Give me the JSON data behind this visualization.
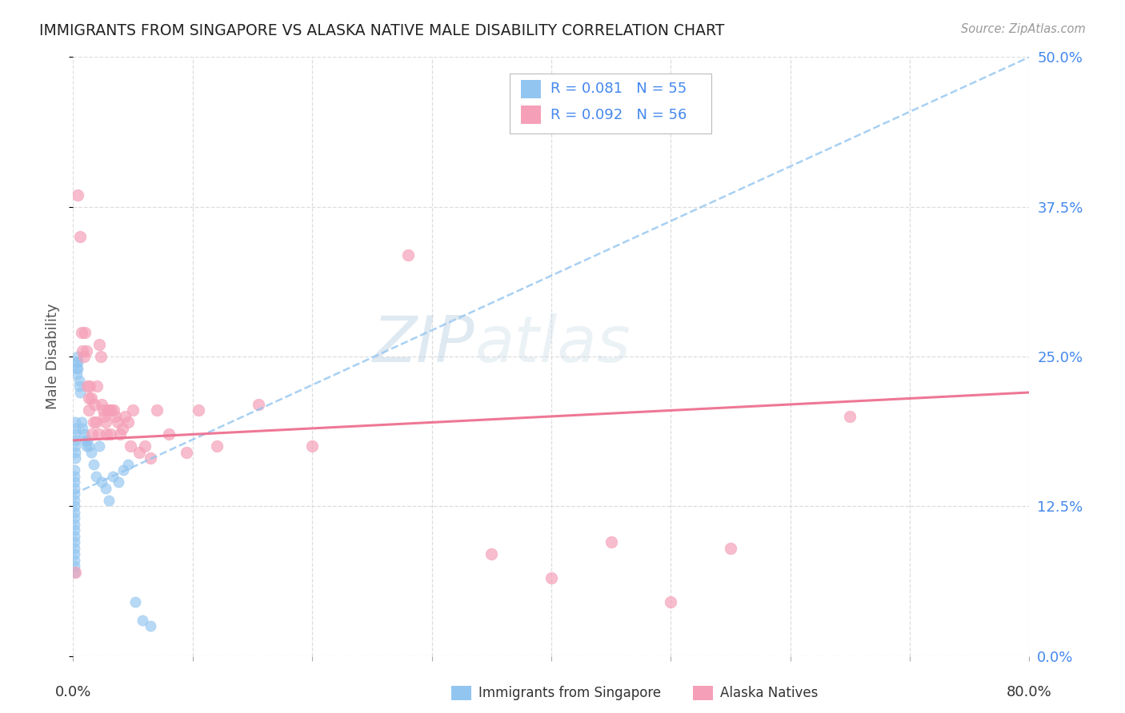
{
  "title": "IMMIGRANTS FROM SINGAPORE VS ALASKA NATIVE MALE DISABILITY CORRELATION CHART",
  "source": "Source: ZipAtlas.com",
  "ylabel": "Male Disability",
  "xlim": [
    0.0,
    0.8
  ],
  "ylim": [
    0.0,
    0.5
  ],
  "xticks": [
    0.0,
    0.1,
    0.2,
    0.3,
    0.4,
    0.5,
    0.6,
    0.7,
    0.8
  ],
  "yticks": [
    0.0,
    0.125,
    0.25,
    0.375,
    0.5
  ],
  "ytick_labels": [
    "0.0%",
    "12.5%",
    "25.0%",
    "37.5%",
    "50.0%"
  ],
  "color_blue": "#92C5F0",
  "color_pink": "#F5A0B8",
  "color_blue_line": "#92C5F0",
  "color_pink_line": "#EE7090",
  "watermark_zip": "ZIP",
  "watermark_atlas": "atlas",
  "blue_scatter_x": [
    0.001,
    0.001,
    0.001,
    0.001,
    0.001,
    0.001,
    0.001,
    0.001,
    0.001,
    0.001,
    0.001,
    0.001,
    0.001,
    0.001,
    0.001,
    0.001,
    0.001,
    0.001,
    0.002,
    0.002,
    0.002,
    0.002,
    0.002,
    0.002,
    0.002,
    0.003,
    0.003,
    0.003,
    0.004,
    0.004,
    0.004,
    0.005,
    0.005,
    0.006,
    0.007,
    0.008,
    0.009,
    0.01,
    0.011,
    0.012,
    0.013,
    0.015,
    0.017,
    0.019,
    0.022,
    0.024,
    0.027,
    0.03,
    0.033,
    0.038,
    0.042,
    0.046,
    0.052,
    0.058,
    0.065
  ],
  "blue_scatter_y": [
    0.155,
    0.15,
    0.145,
    0.14,
    0.135,
    0.13,
    0.125,
    0.12,
    0.115,
    0.11,
    0.105,
    0.1,
    0.095,
    0.09,
    0.085,
    0.08,
    0.075,
    0.07,
    0.195,
    0.19,
    0.185,
    0.18,
    0.175,
    0.17,
    0.165,
    0.245,
    0.24,
    0.235,
    0.25,
    0.245,
    0.24,
    0.23,
    0.225,
    0.22,
    0.195,
    0.19,
    0.185,
    0.18,
    0.175,
    0.18,
    0.175,
    0.17,
    0.16,
    0.15,
    0.175,
    0.145,
    0.14,
    0.13,
    0.15,
    0.145,
    0.155,
    0.16,
    0.045,
    0.03,
    0.025
  ],
  "pink_scatter_x": [
    0.002,
    0.004,
    0.006,
    0.007,
    0.008,
    0.009,
    0.01,
    0.011,
    0.012,
    0.013,
    0.013,
    0.014,
    0.015,
    0.016,
    0.017,
    0.018,
    0.019,
    0.02,
    0.021,
    0.022,
    0.023,
    0.024,
    0.025,
    0.026,
    0.027,
    0.028,
    0.029,
    0.03,
    0.031,
    0.032,
    0.034,
    0.035,
    0.037,
    0.039,
    0.041,
    0.043,
    0.046,
    0.048,
    0.05,
    0.055,
    0.06,
    0.065,
    0.07,
    0.08,
    0.095,
    0.105,
    0.12,
    0.155,
    0.2,
    0.28,
    0.35,
    0.4,
    0.45,
    0.5,
    0.55,
    0.65
  ],
  "pink_scatter_y": [
    0.07,
    0.385,
    0.35,
    0.27,
    0.255,
    0.25,
    0.27,
    0.255,
    0.225,
    0.215,
    0.205,
    0.225,
    0.215,
    0.185,
    0.195,
    0.21,
    0.195,
    0.225,
    0.185,
    0.26,
    0.25,
    0.21,
    0.205,
    0.2,
    0.195,
    0.185,
    0.205,
    0.205,
    0.185,
    0.205,
    0.205,
    0.2,
    0.195,
    0.185,
    0.19,
    0.2,
    0.195,
    0.175,
    0.205,
    0.17,
    0.175,
    0.165,
    0.205,
    0.185,
    0.17,
    0.205,
    0.175,
    0.21,
    0.175,
    0.335,
    0.085,
    0.065,
    0.095,
    0.045,
    0.09,
    0.2
  ],
  "blue_trend_x": [
    0.0,
    0.8
  ],
  "blue_trend_y": [
    0.135,
    0.5
  ],
  "pink_trend_x": [
    0.0,
    0.8
  ],
  "pink_trend_y": [
    0.18,
    0.22
  ],
  "background_color": "#ffffff",
  "grid_color": "#dddddd",
  "title_color": "#222222",
  "axis_label_color": "#555555",
  "tick_color_right": "#4488ee",
  "legend_text_color": "#4488ee",
  "bottom_legend_text_color": "#333333"
}
